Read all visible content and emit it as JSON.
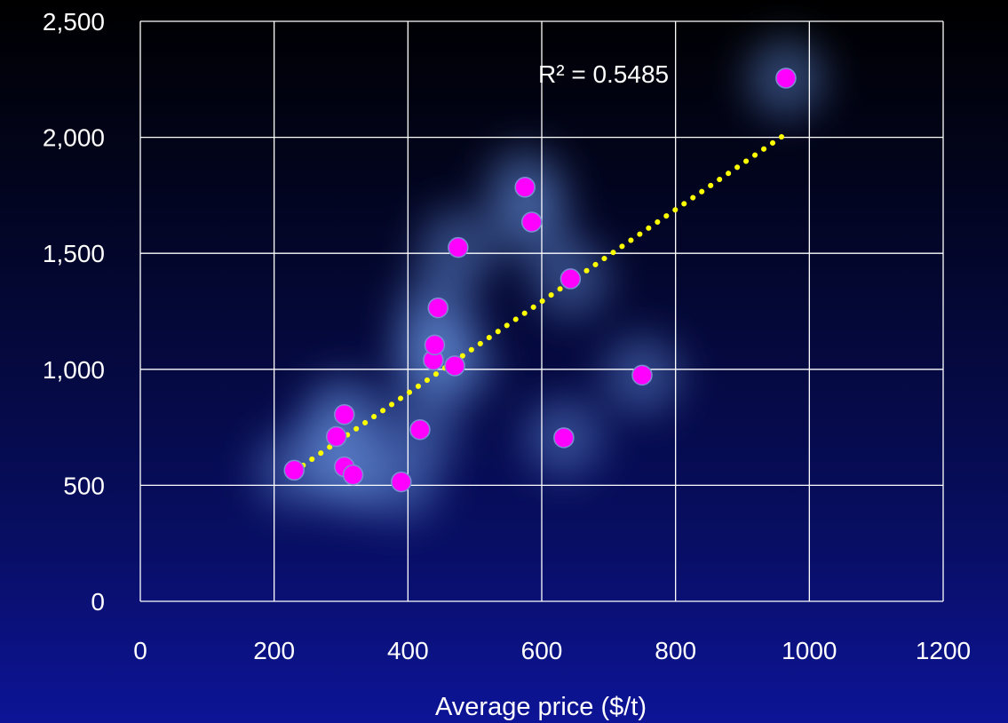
{
  "chart_data": {
    "type": "scatter",
    "title": "",
    "xlabel": "Average price ($/t)",
    "ylabel": "",
    "xlim": [
      0,
      1200
    ],
    "ylim": [
      0,
      2500
    ],
    "x_ticks": [
      "0",
      "200",
      "400",
      "600",
      "800",
      "1000",
      "1200"
    ],
    "y_ticks": [
      "0",
      "500",
      "1,000",
      "1,500",
      "2,000",
      "2,500"
    ],
    "grid": true,
    "legend": "none",
    "colors": {
      "point": "#ff00ff",
      "trendline": "#ffff00",
      "grid": "#ffffff",
      "text": "#ffffff"
    },
    "trendline": {
      "type": "linear",
      "style": "dotted",
      "x_range": [
        230,
        965
      ],
      "y_range": [
        560,
        2015
      ],
      "label": "R² = 0.5485"
    },
    "points": [
      {
        "x": 230,
        "y": 565
      },
      {
        "x": 293,
        "y": 710
      },
      {
        "x": 305,
        "y": 805
      },
      {
        "x": 305,
        "y": 580
      },
      {
        "x": 318,
        "y": 545
      },
      {
        "x": 390,
        "y": 515
      },
      {
        "x": 418,
        "y": 740
      },
      {
        "x": 438,
        "y": 1040
      },
      {
        "x": 440,
        "y": 1105
      },
      {
        "x": 445,
        "y": 1265
      },
      {
        "x": 470,
        "y": 1015
      },
      {
        "x": 475,
        "y": 1525
      },
      {
        "x": 575,
        "y": 1785
      },
      {
        "x": 585,
        "y": 1635
      },
      {
        "x": 633,
        "y": 705
      },
      {
        "x": 643,
        "y": 1390
      },
      {
        "x": 750,
        "y": 975
      },
      {
        "x": 965,
        "y": 2255
      }
    ]
  }
}
